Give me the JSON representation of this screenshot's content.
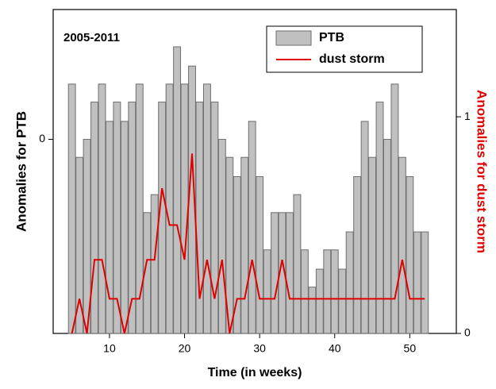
{
  "chart_data": {
    "type": "bar",
    "annotation": "2005-2011",
    "x_label": "Time (in weeks)",
    "y_label": "Anomalies for PTB",
    "y2_label": "Anomalies for dust storm",
    "x": [
      5,
      6,
      7,
      8,
      9,
      10,
      11,
      12,
      13,
      14,
      15,
      16,
      17,
      18,
      19,
      20,
      21,
      22,
      23,
      24,
      25,
      26,
      27,
      28,
      29,
      30,
      31,
      32,
      33,
      34,
      35,
      36,
      37,
      38,
      39,
      40,
      41,
      42,
      43,
      44,
      45,
      46,
      47,
      48,
      49,
      50,
      51,
      52
    ],
    "series": [
      {
        "name": "PTB",
        "type": "bar",
        "color": "#c0c0c0",
        "edge_color": "#6e6e6e",
        "values": [
          0.43,
          -0.14,
          0,
          0.29,
          0.43,
          0.14,
          0.29,
          0.14,
          0.29,
          0.43,
          -0.57,
          -0.43,
          0.29,
          0.43,
          0.72,
          0.43,
          0.57,
          0.29,
          0.43,
          0.29,
          0,
          -0.14,
          -0.29,
          -0.14,
          0.14,
          -0.29,
          -0.86,
          -0.57,
          -0.57,
          -0.57,
          -0.43,
          -0.86,
          -1.15,
          -1.01,
          -0.86,
          -0.86,
          -1.01,
          -0.72,
          -0.29,
          0.14,
          -0.14,
          0.29,
          0,
          0.43,
          -0.14,
          -0.29,
          -0.72,
          -0.72
        ]
      },
      {
        "name": "dust storm",
        "type": "line",
        "axis": "y2",
        "color": "#e00000",
        "values": [
          0,
          0.16,
          0,
          0.34,
          0.34,
          0.16,
          0.16,
          0,
          0.16,
          0.16,
          0.34,
          0.34,
          0.67,
          0.5,
          0.5,
          0.34,
          0.83,
          0.16,
          0.34,
          0.16,
          0.34,
          0,
          0.16,
          0.16,
          0.34,
          0.16,
          0.16,
          0.16,
          0.34,
          0.16,
          0.16,
          0.16,
          0.16,
          0.16,
          0.16,
          0.16,
          0.16,
          0.16,
          0.16,
          0.16,
          0.16,
          0.16,
          0.16,
          0.16,
          0.34,
          0.16,
          0.16,
          0.16
        ]
      }
    ],
    "xlim": [
      2.5,
      56.2
    ],
    "xticks": [
      10,
      20,
      30,
      40,
      50
    ],
    "ylim": [
      -1.51,
      1.01
    ],
    "yticks": [
      0
    ],
    "y2lim": [
      0,
      1.495
    ],
    "y2ticks": [
      0,
      1
    ],
    "legend": "upper right"
  }
}
